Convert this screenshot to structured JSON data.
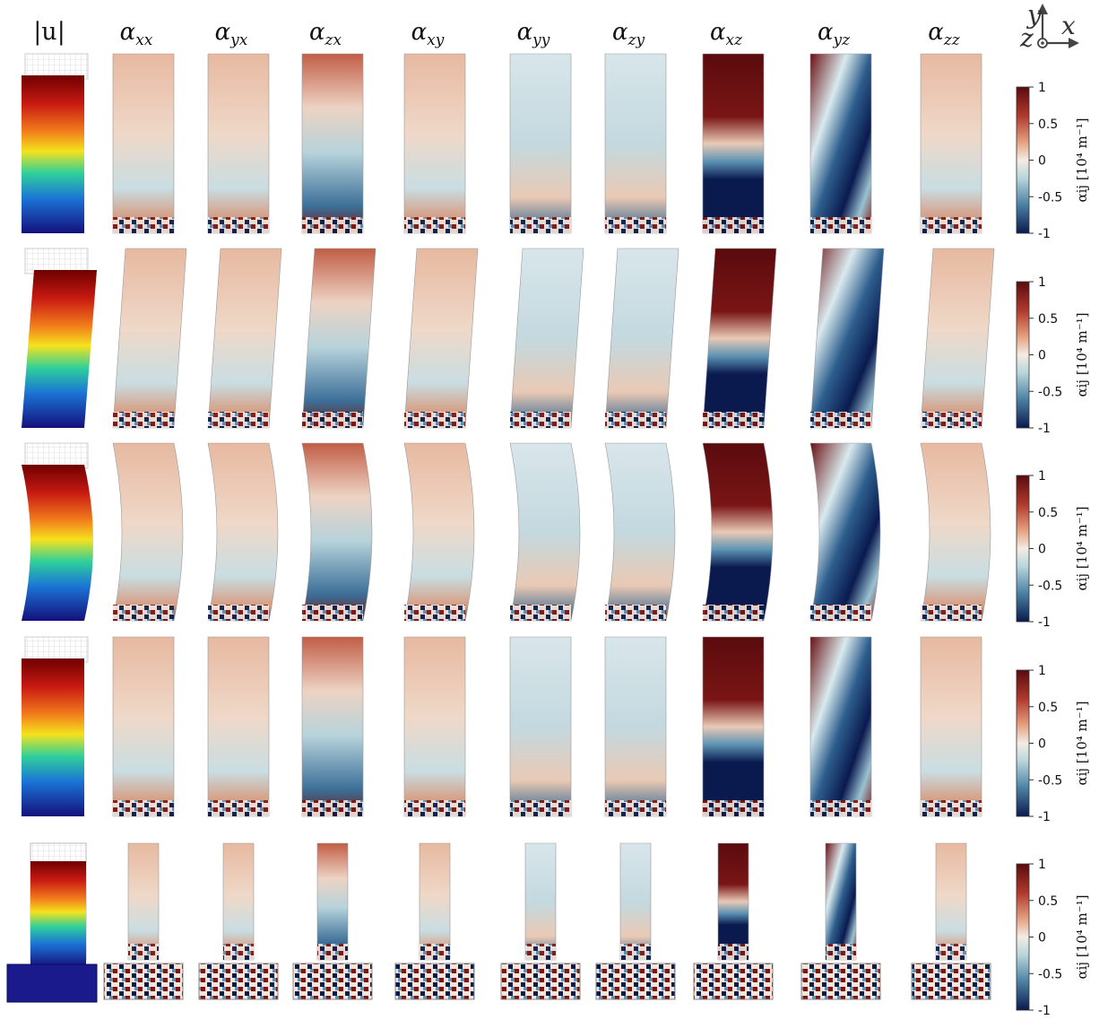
{
  "header": {
    "displacement_label": "|u|",
    "components": [
      {
        "base": "α",
        "sub": "xx"
      },
      {
        "base": "α",
        "sub": "yx"
      },
      {
        "base": "α",
        "sub": "zx"
      },
      {
        "base": "α",
        "sub": "xy"
      },
      {
        "base": "α",
        "sub": "yy"
      },
      {
        "base": "α",
        "sub": "zy"
      },
      {
        "base": "α",
        "sub": "xz"
      },
      {
        "base": "α",
        "sub": "yz"
      },
      {
        "base": "α",
        "sub": "zz"
      }
    ]
  },
  "axes_triad": {
    "y": "y",
    "x": "x",
    "z": "z"
  },
  "colorbar": {
    "ticks": [
      "1",
      "0.5",
      "0",
      "-0.5",
      "-1"
    ],
    "label": "αij [10⁴ m⁻¹]",
    "colors": [
      "#5a0b0e",
      "#b23a2e",
      "#e6a382",
      "#f4ece4",
      "#b9d6dc",
      "#4d84a6",
      "#0a1a4f"
    ]
  },
  "rows": [
    {
      "deformation": "barrel"
    },
    {
      "deformation": "shear"
    },
    {
      "deformation": "bend"
    },
    {
      "deformation": "barrel-mild"
    },
    {
      "deformation": "base-block"
    }
  ]
}
